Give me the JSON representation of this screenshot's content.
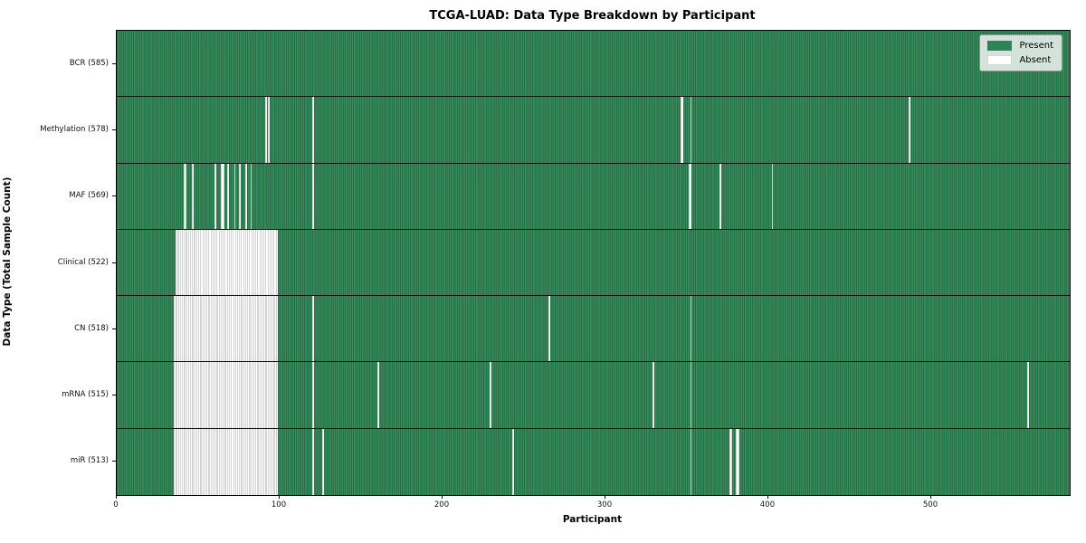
{
  "chart_data": {
    "type": "heatmap",
    "title": "TCGA-LUAD: Data Type Breakdown by Participant",
    "xlabel": "Participant",
    "ylabel": "Data Type (Total Sample Count)",
    "x_ticks": [
      0,
      100,
      200,
      300,
      400,
      500
    ],
    "x_range": [
      0,
      585
    ],
    "n_participants": 585,
    "grid": false,
    "legend_position": "upper right",
    "colors": {
      "present": "#2e8457",
      "present_edge": "#1c5936",
      "absent": "#ffffff",
      "absent_edge": "#a9a9a9",
      "row_separator": "#101410",
      "plot_border": "#000000"
    },
    "legend": [
      {
        "label": "Present",
        "color": "#2e8457"
      },
      {
        "label": "Absent",
        "color": "#ffffff"
      }
    ],
    "rows": [
      {
        "label": "BCR (585)",
        "data_type": "BCR",
        "total_sample_count": 585,
        "absent_ranges": []
      },
      {
        "label": "Methylation (578)",
        "data_type": "Methylation",
        "total_sample_count": 578,
        "absent_ranges": [
          [
            91,
            91
          ],
          [
            93,
            93
          ],
          [
            120,
            120
          ],
          [
            346,
            347
          ],
          [
            352,
            352
          ],
          [
            486,
            486
          ]
        ]
      },
      {
        "label": "MAF (569)",
        "data_type": "MAF",
        "total_sample_count": 569,
        "absent_ranges": [
          [
            41,
            42
          ],
          [
            46,
            46
          ],
          [
            60,
            60
          ],
          [
            64,
            65
          ],
          [
            68,
            68
          ],
          [
            72,
            72
          ],
          [
            75,
            75
          ],
          [
            79,
            79
          ],
          [
            82,
            82
          ],
          [
            120,
            120
          ],
          [
            351,
            352
          ],
          [
            370,
            370
          ],
          [
            402,
            402
          ]
        ]
      },
      {
        "label": "Clinical (522)",
        "data_type": "Clinical",
        "total_sample_count": 522,
        "absent_ranges": [
          [
            36,
            98
          ]
        ]
      },
      {
        "label": "CN (518)",
        "data_type": "CN",
        "total_sample_count": 518,
        "absent_ranges": [
          [
            35,
            98
          ],
          [
            120,
            120
          ],
          [
            265,
            265
          ],
          [
            352,
            352
          ]
        ]
      },
      {
        "label": "mRNA (515)",
        "data_type": "mRNA",
        "total_sample_count": 515,
        "absent_ranges": [
          [
            35,
            98
          ],
          [
            120,
            120
          ],
          [
            160,
            160
          ],
          [
            229,
            229
          ],
          [
            329,
            329
          ],
          [
            352,
            352
          ],
          [
            559,
            559
          ]
        ]
      },
      {
        "label": "miR (513)",
        "data_type": "miR",
        "total_sample_count": 513,
        "absent_ranges": [
          [
            35,
            98
          ],
          [
            120,
            120
          ],
          [
            126,
            126
          ],
          [
            243,
            243
          ],
          [
            352,
            352
          ],
          [
            376,
            377
          ],
          [
            380,
            381
          ]
        ]
      }
    ]
  }
}
